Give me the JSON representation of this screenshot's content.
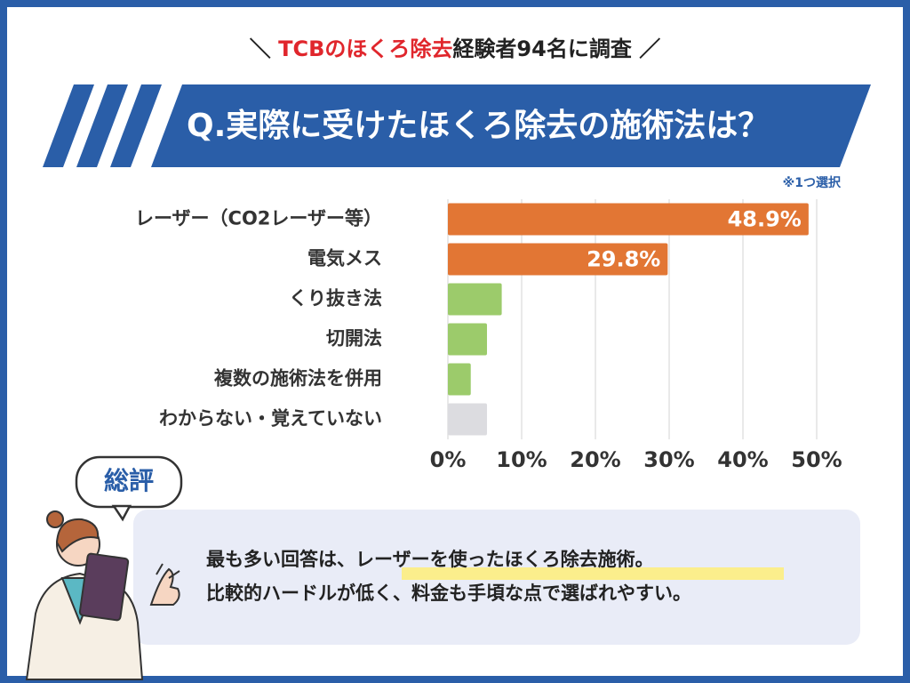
{
  "header": {
    "slash_left": "＼",
    "highlight": "TCBのほくろ除去",
    "rest": "経験者94名に調査",
    "slash_right": "／"
  },
  "question": "Q.実際に受けたほくろ除去の施術法は？",
  "note": "※1つ選択",
  "summary": {
    "badge": "総評",
    "line1_start": "最も多い回答は、",
    "line1_highlight": "レーザーを使ったほくろ除去施術",
    "line1_end": "。",
    "line2": "比較的ハードルが低く、料金も手頃な点で選ばれやすい。"
  },
  "chart_data": {
    "type": "bar",
    "horizontal": true,
    "categories": [
      "レーザー（CO2レーザー等）",
      "電気メス",
      "くり抜き法",
      "切開法",
      "複数の施術法を併用",
      "わからない・覚えていない"
    ],
    "values": [
      48.9,
      29.8,
      7.3,
      5.3,
      3.1,
      5.3
    ],
    "value_labels": [
      "48.9%",
      "29.8%",
      null,
      null,
      null,
      null
    ],
    "colors": [
      "#e27634",
      "#e27634",
      "#9ccb6b",
      "#9ccb6b",
      "#9ccb6b",
      "#dcdce0"
    ],
    "xlim": [
      0,
      50
    ],
    "xticks": [
      {
        "value": 0,
        "label": "0%"
      },
      {
        "value": 10,
        "label": "10%"
      },
      {
        "value": 20,
        "label": "20%"
      },
      {
        "value": 30,
        "label": "30%"
      },
      {
        "value": 40,
        "label": "40%"
      },
      {
        "value": 50,
        "label": "50%"
      }
    ],
    "grid": true
  }
}
